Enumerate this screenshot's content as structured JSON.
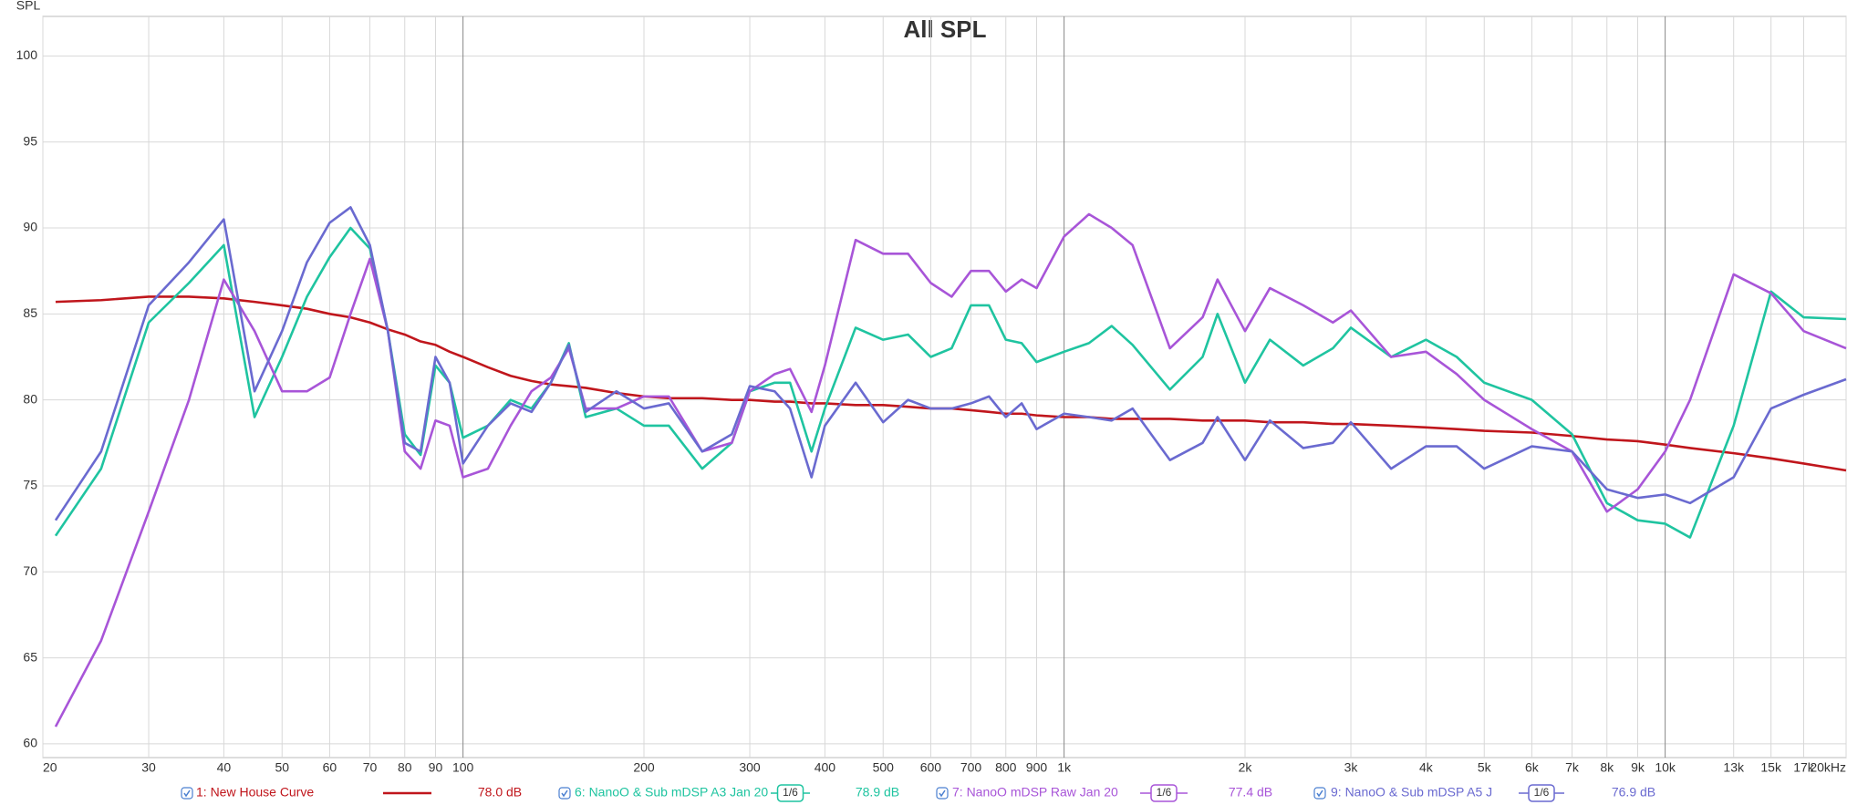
{
  "chart_data": {
    "type": "line",
    "title": "All SPL",
    "y_label": "SPL",
    "xscale": "log",
    "grid": true,
    "xlim": [
      20,
      20000
    ],
    "ylim": [
      59.2,
      102.3
    ],
    "yticks": [
      60,
      65,
      70,
      75,
      80,
      85,
      90,
      95,
      100
    ],
    "xticks": [
      20,
      30,
      40,
      50,
      60,
      70,
      80,
      90,
      100,
      200,
      300,
      400,
      500,
      600,
      700,
      800,
      900,
      {
        "value": 1000,
        "label": "1k"
      },
      {
        "value": 2000,
        "label": "2k"
      },
      {
        "value": 3000,
        "label": "3k"
      },
      {
        "value": 4000,
        "label": "4k"
      },
      {
        "value": 5000,
        "label": "5k"
      },
      {
        "value": 6000,
        "label": "6k"
      },
      {
        "value": 7000,
        "label": "7k"
      },
      {
        "value": 8000,
        "label": "8k"
      },
      {
        "value": 9000,
        "label": "9k"
      },
      {
        "value": 10000,
        "label": "10k"
      },
      {
        "value": 13000,
        "label": "13k"
      },
      {
        "value": 15000,
        "label": "15k"
      },
      {
        "value": 17000,
        "label": "17k"
      },
      {
        "value": 20000,
        "label": "20kHz"
      }
    ],
    "x": [
      21,
      25,
      30,
      35,
      40,
      45,
      50,
      55,
      60,
      65,
      70,
      75,
      80,
      85,
      90,
      95,
      100,
      110,
      120,
      130,
      140,
      150,
      160,
      180,
      200,
      220,
      250,
      280,
      300,
      330,
      350,
      380,
      400,
      450,
      500,
      550,
      600,
      650,
      700,
      750,
      800,
      850,
      900,
      1000,
      1100,
      1200,
      1300,
      1500,
      1700,
      1800,
      2000,
      2200,
      2500,
      2800,
      3000,
      3500,
      4000,
      4500,
      5000,
      6000,
      7000,
      8000,
      9000,
      10000,
      11000,
      13000,
      15000,
      17000,
      20000
    ],
    "series": [
      {
        "name": "1: New House Curve",
        "color": "#c0161c",
        "level": "78.0 dB",
        "values": [
          85.7,
          85.8,
          86,
          86,
          85.9,
          85.7,
          85.5,
          85.3,
          85,
          84.8,
          84.5,
          84.1,
          83.8,
          83.4,
          83.2,
          82.8,
          82.5,
          81.9,
          81.4,
          81.1,
          80.9,
          80.8,
          80.7,
          80.4,
          80.2,
          80.1,
          80.1,
          80,
          80,
          79.9,
          79.9,
          79.8,
          79.8,
          79.7,
          79.7,
          79.6,
          79.5,
          79.5,
          79.4,
          79.3,
          79.2,
          79.2,
          79.1,
          79,
          79,
          78.9,
          78.9,
          78.9,
          78.8,
          78.8,
          78.8,
          78.7,
          78.7,
          78.6,
          78.6,
          78.5,
          78.4,
          78.3,
          78.2,
          78.1,
          77.9,
          77.7,
          77.6,
          77.4,
          77.2,
          76.9,
          76.6,
          76.3,
          75.9
        ]
      },
      {
        "name": "6: NanoO & Sub mDSP A3 Jan 20",
        "color": "#1fc4a0",
        "level": "78.9 dB",
        "smoothing": "1/6",
        "values": [
          72.1,
          76,
          84.5,
          86.8,
          89,
          79,
          82.5,
          86,
          88.3,
          90,
          88.8,
          84,
          78,
          76.8,
          82,
          81,
          77.8,
          78.5,
          80,
          79.5,
          81,
          83.3,
          79,
          79.5,
          78.5,
          78.5,
          76,
          77.5,
          80.5,
          81,
          81,
          77,
          79.5,
          84.2,
          83.5,
          83.8,
          82.5,
          83,
          85.5,
          85.5,
          83.5,
          83.3,
          82.2,
          82.8,
          83.3,
          84.3,
          83.2,
          80.6,
          82.5,
          85,
          81,
          83.5,
          82,
          83,
          84.2,
          82.5,
          83.5,
          82.5,
          81,
          80,
          78,
          74,
          73,
          72.8,
          72,
          78.5,
          86.3,
          84.8,
          84.7
        ]
      },
      {
        "name": "7: NanoO mDSP Raw Jan 20",
        "color": "#a855d8",
        "level": "77.4 dB",
        "smoothing": "1/6",
        "values": [
          61,
          66,
          73.5,
          80,
          87,
          84,
          80.5,
          80.5,
          81.3,
          85,
          88.2,
          84,
          77,
          76,
          78.8,
          78.5,
          75.5,
          76,
          78.5,
          80.5,
          81.3,
          83,
          79.5,
          79.5,
          80.2,
          80.2,
          77,
          77.5,
          80.5,
          81.5,
          81.8,
          79.3,
          82,
          89.3,
          88.5,
          88.5,
          86.8,
          86,
          87.5,
          87.5,
          86.3,
          87,
          86.5,
          89.5,
          90.8,
          90,
          89,
          83,
          84.8,
          87,
          84,
          86.5,
          85.5,
          84.5,
          85.2,
          82.5,
          82.8,
          81.5,
          80,
          78.3,
          77,
          73.5,
          74.8,
          77,
          80,
          87.3,
          86.2,
          84,
          83
        ]
      },
      {
        "name": "9: NanoO & Sub mDSP A5 J",
        "color": "#6a6ad0",
        "level": "76.9 dB",
        "smoothing": "1/6",
        "values": [
          73,
          77,
          85.5,
          88,
          90.5,
          80.5,
          84,
          88,
          90.3,
          91.2,
          89,
          84,
          77.5,
          77,
          82.5,
          81,
          76.3,
          78.5,
          79.8,
          79.3,
          81,
          83.2,
          79.3,
          80.5,
          79.5,
          79.8,
          77,
          78,
          80.8,
          80.5,
          79.5,
          75.5,
          78.5,
          81,
          78.7,
          80,
          79.5,
          79.5,
          79.8,
          80.2,
          79,
          79.8,
          78.3,
          79.2,
          79,
          78.8,
          79.5,
          76.5,
          77.5,
          79,
          76.5,
          78.8,
          77.2,
          77.5,
          78.7,
          76,
          77.3,
          77.3,
          76,
          77.3,
          77,
          74.8,
          74.3,
          74.5,
          74,
          75.5,
          79.5,
          80.3,
          81.2
        ]
      }
    ]
  }
}
